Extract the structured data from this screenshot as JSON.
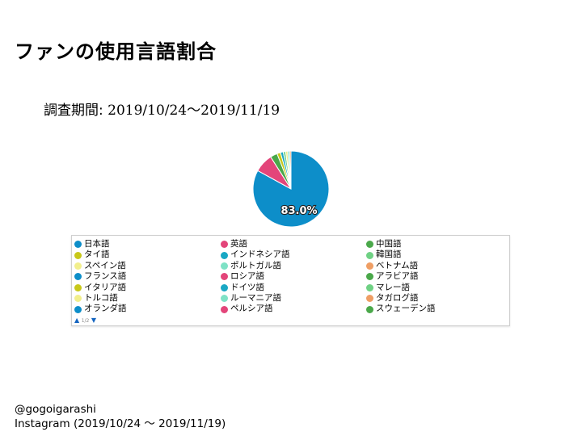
{
  "page": {
    "title": "ファンの使用言語割合",
    "period_label": "調査期間:",
    "period_value": "2019/10/24〜2019/11/19",
    "footer_handle": "@gogoigarashi",
    "footer_source": "Instagram (2019/10/24 〜 2019/11/19)"
  },
  "chart_data": {
    "type": "pie",
    "title": "ファンの使用言語割合",
    "slice_label": "83.0%",
    "slices": [
      {
        "name": "日本語",
        "value": 83.0,
        "color": "#0d8ec9"
      },
      {
        "name": "英語",
        "value": 8.0,
        "color": "#e3457a"
      },
      {
        "name": "中国語",
        "value": 3.0,
        "color": "#4aa84a"
      },
      {
        "name": "タイ語",
        "value": 1.5,
        "color": "#c8c81a"
      },
      {
        "name": "インドネシア語",
        "value": 1.2,
        "color": "#19a8c4"
      },
      {
        "name": "韓国語",
        "value": 1.0,
        "color": "#6fd184"
      },
      {
        "name": "スペイン語",
        "value": 0.9,
        "color": "#f2ef8c"
      },
      {
        "name": "ポルトガル語",
        "value": 0.8,
        "color": "#7fe2c6"
      },
      {
        "name": "ベトナム語",
        "value": 0.6,
        "color": "#ef9e64"
      }
    ],
    "legend": {
      "columns": [
        [
          {
            "name": "日本語",
            "color": "#0d8ec9"
          },
          {
            "name": "タイ語",
            "color": "#c8c81a"
          },
          {
            "name": "スペイン語",
            "color": "#f2ef8c"
          },
          {
            "name": "フランス語",
            "color": "#0d8ec9"
          },
          {
            "name": "イタリア語",
            "color": "#c8c81a"
          },
          {
            "name": "トルコ語",
            "color": "#f2ef8c"
          },
          {
            "name": "オランダ語",
            "color": "#0d8ec9"
          }
        ],
        [
          {
            "name": "英語",
            "color": "#e3457a"
          },
          {
            "name": "インドネシア語",
            "color": "#19a8c4"
          },
          {
            "name": "ポルトガル語",
            "color": "#7fe2c6"
          },
          {
            "name": "ロシア語",
            "color": "#e3457a"
          },
          {
            "name": "ドイツ語",
            "color": "#19a8c4"
          },
          {
            "name": "ルーマニア語",
            "color": "#7fe2c6"
          },
          {
            "name": "ペルシア語",
            "color": "#e3457a"
          }
        ],
        [
          {
            "name": "中国語",
            "color": "#4aa84a"
          },
          {
            "name": "韓国語",
            "color": "#6fd184"
          },
          {
            "name": "ベトナム語",
            "color": "#ef9e64"
          },
          {
            "name": "アラビア語",
            "color": "#4aa84a"
          },
          {
            "name": "マレー語",
            "color": "#6fd184"
          },
          {
            "name": "タガログ語",
            "color": "#ef9e64"
          },
          {
            "name": "スウェーデン語",
            "color": "#4aa84a"
          }
        ]
      ],
      "pager": "1/2"
    }
  }
}
